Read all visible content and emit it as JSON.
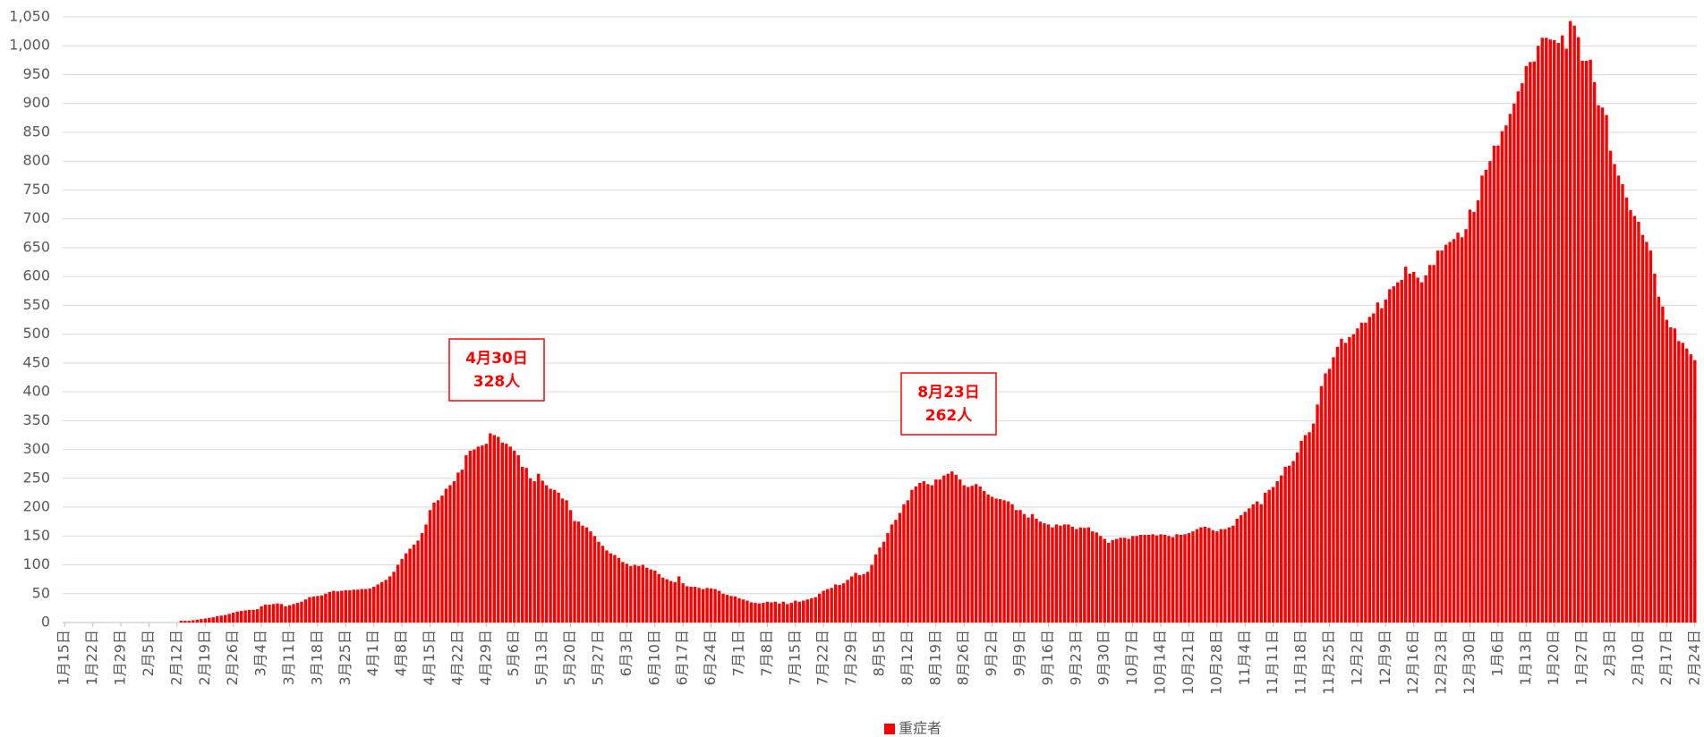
{
  "chart_data": {
    "type": "bar",
    "categories": [
      "1月15日",
      null,
      null,
      null,
      null,
      null,
      null,
      "1月22日",
      null,
      null,
      null,
      null,
      null,
      null,
      "1月29日",
      null,
      null,
      null,
      null,
      null,
      null,
      "2月5日",
      null,
      null,
      null,
      null,
      null,
      null,
      "2月12日",
      null,
      null,
      null,
      null,
      null,
      null,
      "2月19日",
      null,
      null,
      null,
      null,
      null,
      null,
      "2月26日",
      null,
      null,
      null,
      null,
      null,
      null,
      "3月4日",
      null,
      null,
      null,
      null,
      null,
      null,
      "3月11日",
      null,
      null,
      null,
      null,
      null,
      null,
      "3月18日",
      null,
      null,
      null,
      null,
      null,
      null,
      "3月25日",
      null,
      null,
      null,
      null,
      null,
      null,
      "4月1日",
      null,
      null,
      null,
      null,
      null,
      null,
      "4月8日",
      null,
      null,
      null,
      null,
      null,
      null,
      "4月15日",
      null,
      null,
      null,
      null,
      null,
      null,
      "4月22日",
      null,
      null,
      null,
      null,
      null,
      null,
      "4月29日",
      null,
      null,
      null,
      null,
      null,
      null,
      "5月6日",
      null,
      null,
      null,
      null,
      null,
      null,
      "5月13日",
      null,
      null,
      null,
      null,
      null,
      null,
      "5月20日",
      null,
      null,
      null,
      null,
      null,
      null,
      "5月27日",
      null,
      null,
      null,
      null,
      null,
      null,
      "6月3日",
      null,
      null,
      null,
      null,
      null,
      null,
      "6月10日",
      null,
      null,
      null,
      null,
      null,
      null,
      "6月17日",
      null,
      null,
      null,
      null,
      null,
      null,
      "6月24日",
      null,
      null,
      null,
      null,
      null,
      null,
      "7月1日",
      null,
      null,
      null,
      null,
      null,
      null,
      "7月8日",
      null,
      null,
      null,
      null,
      null,
      null,
      "7月15日",
      null,
      null,
      null,
      null,
      null,
      null,
      "7月22日",
      null,
      null,
      null,
      null,
      null,
      null,
      "7月29日",
      null,
      null,
      null,
      null,
      null,
      null,
      "8月5日",
      null,
      null,
      null,
      null,
      null,
      null,
      "8月12日",
      null,
      null,
      null,
      null,
      null,
      null,
      "8月19日",
      null,
      null,
      null,
      null,
      null,
      null,
      "8月26日",
      null,
      null,
      null,
      null,
      null,
      null,
      "9月2日",
      null,
      null,
      null,
      null,
      null,
      null,
      "9月9日",
      null,
      null,
      null,
      null,
      null,
      null,
      "9月16日",
      null,
      null,
      null,
      null,
      null,
      null,
      "9月23日",
      null,
      null,
      null,
      null,
      null,
      null,
      "9月30日",
      null,
      null,
      null,
      null,
      null,
      null,
      "10月7日",
      null,
      null,
      null,
      null,
      null,
      null,
      "10月14日",
      null,
      null,
      null,
      null,
      null,
      null,
      "10月21日",
      null,
      null,
      null,
      null,
      null,
      null,
      "10月28日",
      null,
      null,
      null,
      null,
      null,
      null,
      "11月4日",
      null,
      null,
      null,
      null,
      null,
      null,
      "11月11日",
      null,
      null,
      null,
      null,
      null,
      null,
      "11月18日",
      null,
      null,
      null,
      null,
      null,
      null,
      "11月25日",
      null,
      null,
      null,
      null,
      null,
      null,
      "12月2日",
      null,
      null,
      null,
      null,
      null,
      null,
      "12月9日",
      null,
      null,
      null,
      null,
      null,
      null,
      "12月16日",
      null,
      null,
      null,
      null,
      null,
      null,
      "12月23日",
      null,
      null,
      null,
      null,
      null,
      null,
      "12月30日",
      null,
      null,
      null,
      null,
      null,
      null,
      "1月6日",
      null,
      null,
      null,
      null,
      null,
      null,
      "1月13日",
      null,
      null,
      null,
      null,
      null,
      null,
      "1月20日",
      null,
      null,
      null,
      null,
      null,
      null,
      "1月27日",
      null,
      null,
      null,
      null,
      null,
      null,
      "2月3日",
      null,
      null,
      null,
      null,
      null,
      null,
      "2月10日",
      null,
      null,
      null,
      null,
      null,
      null,
      "2月17日",
      null,
      null,
      null,
      null,
      null,
      null,
      "2月24日"
    ],
    "series": [
      {
        "name": "重症者",
        "color": "#ff0000",
        "values": [
          0,
          0,
          0,
          0,
          0,
          0,
          0,
          0,
          0,
          0,
          0,
          0,
          0,
          0,
          0,
          0,
          0,
          0,
          0,
          0,
          0,
          0,
          0,
          0,
          0,
          0,
          0,
          0,
          0,
          3,
          3,
          3,
          4,
          5,
          6,
          7,
          8,
          9,
          11,
          12,
          13,
          15,
          17,
          19,
          20,
          21,
          22,
          22,
          23,
          28,
          31,
          31,
          32,
          33,
          32,
          28,
          30,
          32,
          34,
          36,
          40,
          44,
          45,
          46,
          47,
          50,
          53,
          55,
          54,
          55,
          56,
          56,
          57,
          57,
          58,
          58,
          59,
          62,
          66,
          70,
          74,
          80,
          88,
          100,
          110,
          120,
          128,
          135,
          142,
          155,
          170,
          195,
          208,
          212,
          220,
          232,
          238,
          245,
          260,
          265,
          290,
          298,
          300,
          305,
          307,
          310,
          328,
          325,
          322,
          312,
          310,
          305,
          298,
          290,
          270,
          268,
          250,
          245,
          258,
          246,
          238,
          232,
          230,
          225,
          215,
          212,
          195,
          176,
          175,
          168,
          165,
          158,
          150,
          140,
          133,
          125,
          120,
          117,
          112,
          105,
          102,
          98,
          100,
          98,
          100,
          95,
          92,
          90,
          84,
          78,
          75,
          72,
          70,
          80,
          68,
          63,
          62,
          62,
          60,
          58,
          60,
          59,
          58,
          55,
          50,
          48,
          46,
          45,
          42,
          40,
          38,
          35,
          34,
          33,
          34,
          36,
          35,
          36,
          33,
          36,
          32,
          34,
          38,
          36,
          38,
          40,
          42,
          44,
          50,
          55,
          58,
          60,
          66,
          65,
          68,
          74,
          80,
          86,
          82,
          84,
          88,
          100,
          118,
          130,
          140,
          155,
          170,
          178,
          190,
          205,
          212,
          230,
          236,
          242,
          245,
          240,
          238,
          248,
          248,
          255,
          258,
          262,
          256,
          248,
          238,
          235,
          237,
          240,
          236,
          228,
          222,
          218,
          215,
          214,
          212,
          210,
          205,
          195,
          195,
          188,
          182,
          188,
          180,
          175,
          172,
          170,
          165,
          170,
          168,
          170,
          170,
          166,
          162,
          165,
          164,
          165,
          158,
          156,
          150,
          145,
          138,
          143,
          145,
          147,
          147,
          145,
          150,
          150,
          152,
          152,
          152,
          153,
          151,
          153,
          152,
          150,
          148,
          153,
          152,
          153,
          155,
          158,
          162,
          165,
          166,
          164,
          160,
          158,
          162,
          162,
          165,
          168,
          180,
          186,
          192,
          198,
          205,
          210,
          205,
          225,
          230,
          235,
          245,
          255,
          270,
          272,
          280,
          295,
          315,
          325,
          330,
          345,
          378,
          410,
          432,
          440,
          460,
          478,
          492,
          485,
          495,
          500,
          510,
          520,
          520,
          530,
          536,
          555,
          545,
          560,
          578,
          583,
          590,
          594,
          617,
          605,
          608,
          598,
          590,
          602,
          620,
          620,
          645,
          645,
          655,
          660,
          665,
          676,
          668,
          682,
          716,
          712,
          732,
          775,
          785,
          800,
          827,
          827,
          852,
          862,
          882,
          900,
          921,
          935,
          965,
          972,
          973,
          1000,
          1014,
          1014,
          1011,
          1010,
          1005,
          1018,
          995,
          1043,
          1035,
          1015,
          974,
          974,
          976,
          937,
          897,
          893,
          880,
          818,
          795,
          775,
          760,
          737,
          715,
          705,
          695,
          672,
          660,
          645,
          605,
          565,
          548,
          525,
          512,
          510,
          488,
          485,
          475,
          465,
          455
        ]
      }
    ],
    "ylim": [
      0,
      1050
    ],
    "yticks": [
      0,
      50,
      100,
      150,
      200,
      250,
      300,
      350,
      400,
      450,
      500,
      550,
      600,
      650,
      700,
      750,
      800,
      850,
      900,
      950,
      {
        "value": 1000,
        "label": "1,000"
      },
      {
        "value": 1050,
        "label": "1,050"
      }
    ],
    "grid": true,
    "legend": "bottom",
    "annotations": [
      {
        "lines": [
          "4月30日",
          "328人"
        ]
      },
      {
        "lines": [
          "8月23日",
          "262人"
        ]
      }
    ]
  }
}
